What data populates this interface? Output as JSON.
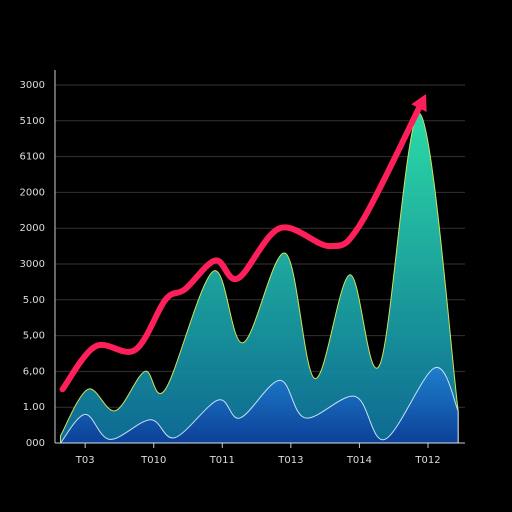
{
  "chart_data": {
    "type": "area",
    "xlim": [
      -0.44,
      5.54
    ],
    "xticks": [
      {
        "value": 0,
        "label": "T03"
      },
      {
        "value": 1,
        "label": "T010"
      },
      {
        "value": 2,
        "label": "T011"
      },
      {
        "value": 3,
        "label": "T013"
      },
      {
        "value": 4,
        "label": "T014"
      },
      {
        "value": 5,
        "label": "T012"
      }
    ],
    "ylim": [
      0,
      10
    ],
    "yticks": [
      {
        "value": 0,
        "label": "000"
      },
      {
        "value": 1,
        "label": "1.00"
      },
      {
        "value": 2,
        "label": "6,00"
      },
      {
        "value": 3,
        "label": "5,00"
      },
      {
        "value": 4,
        "label": "5.00"
      },
      {
        "value": 5,
        "label": "3000"
      },
      {
        "value": 6,
        "label": "2000"
      },
      {
        "value": 7,
        "label": "2000"
      },
      {
        "value": 8,
        "label": "6100"
      },
      {
        "value": 9,
        "label": "5100"
      },
      {
        "value": 10,
        "label": "3000"
      }
    ],
    "grid": true,
    "series": [
      {
        "color": "#1fb5a8",
        "x": [
          -0.36,
          0.04,
          0.44,
          0.87,
          1.17,
          1.87,
          2.3,
          2.92,
          3.35,
          3.86,
          4.3,
          4.88,
          5.44
        ],
        "values": [
          0.2,
          1.5,
          0.9,
          2.0,
          1.5,
          4.8,
          2.8,
          5.3,
          1.8,
          4.7,
          2.2,
          9.2,
          0.9
        ]
      },
      {
        "color": "#1a5fae",
        "x": [
          -0.36,
          0,
          0.36,
          0.95,
          1.31,
          1.94,
          2.26,
          2.84,
          3.21,
          3.94,
          4.37,
          5.1,
          5.44
        ],
        "values": [
          0,
          0.8,
          0.1,
          0.65,
          0.15,
          1.2,
          0.7,
          1.75,
          0.7,
          1.3,
          0.1,
          2.1,
          0.9
        ]
      },
      {
        "color": "#ff1f5a",
        "x": [
          -0.33,
          0.15,
          0.73,
          1.17,
          1.46,
          1.9,
          2.23,
          2.84,
          3.57,
          4.01,
          4.88
        ],
        "values": [
          1.5,
          2.7,
          2.6,
          4.0,
          4.3,
          5.1,
          4.6,
          6.0,
          5.5,
          6.1,
          9.4
        ]
      }
    ]
  }
}
